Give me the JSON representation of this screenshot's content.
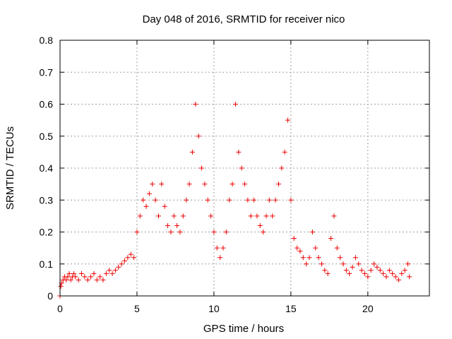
{
  "chart_data": {
    "type": "scatter",
    "title": "Day 048 of 2016, SRMTID for receiver nico",
    "xlabel": "GPS time / hours",
    "ylabel": "SRMTID / TECUs",
    "xlim": [
      0,
      24
    ],
    "ylim": [
      0,
      0.8
    ],
    "xticks": [
      0,
      5,
      10,
      15,
      20
    ],
    "yticks": [
      0,
      0.1,
      0.2,
      0.3,
      0.4,
      0.5,
      0.6,
      0.7,
      0.8
    ],
    "xtick_labels": [
      "0",
      "5",
      "10",
      "15",
      "20"
    ],
    "ytick_labels": [
      "0",
      "0.1",
      "0.2",
      "0.3",
      "0.4",
      "0.5",
      "0.6",
      "0.7",
      "0.8"
    ],
    "grid": true,
    "marker": "+",
    "color": "#ee0000",
    "series": [
      {
        "name": "SRMTID",
        "x": [
          0.0,
          0.05,
          0.1,
          0.2,
          0.3,
          0.4,
          0.5,
          0.6,
          0.7,
          0.8,
          0.9,
          1.0,
          1.2,
          1.4,
          1.6,
          1.8,
          2.0,
          2.2,
          2.4,
          2.6,
          2.8,
          3.0,
          3.2,
          3.4,
          3.6,
          3.8,
          4.0,
          4.2,
          4.4,
          4.6,
          4.8,
          5.0,
          5.2,
          5.4,
          5.6,
          5.8,
          6.0,
          6.2,
          6.4,
          6.6,
          6.8,
          7.0,
          7.2,
          7.4,
          7.6,
          7.8,
          8.0,
          8.2,
          8.4,
          8.6,
          8.8,
          9.0,
          9.2,
          9.4,
          9.6,
          9.8,
          10.0,
          10.2,
          10.4,
          10.6,
          10.8,
          11.0,
          11.2,
          11.4,
          11.6,
          11.8,
          12.0,
          12.2,
          12.4,
          12.6,
          12.8,
          13.0,
          13.2,
          13.4,
          13.6,
          13.8,
          14.0,
          14.2,
          14.4,
          14.6,
          14.8,
          15.0,
          15.2,
          15.4,
          15.6,
          15.8,
          16.0,
          16.2,
          16.4,
          16.6,
          16.8,
          17.0,
          17.2,
          17.4,
          17.6,
          17.8,
          18.0,
          18.2,
          18.4,
          18.6,
          18.8,
          19.0,
          19.2,
          19.4,
          19.6,
          19.8,
          20.0,
          20.2,
          20.4,
          20.6,
          20.8,
          21.0,
          21.2,
          21.4,
          21.6,
          21.8,
          22.0,
          22.2,
          22.4,
          22.6,
          22.7
        ],
        "y": [
          0.0,
          0.03,
          0.04,
          0.05,
          0.06,
          0.05,
          0.06,
          0.07,
          0.05,
          0.06,
          0.07,
          0.06,
          0.05,
          0.07,
          0.06,
          0.05,
          0.06,
          0.07,
          0.05,
          0.06,
          0.05,
          0.07,
          0.08,
          0.07,
          0.08,
          0.09,
          0.1,
          0.11,
          0.12,
          0.13,
          0.12,
          0.2,
          0.25,
          0.3,
          0.28,
          0.32,
          0.35,
          0.3,
          0.25,
          0.35,
          0.28,
          0.22,
          0.2,
          0.25,
          0.22,
          0.2,
          0.25,
          0.3,
          0.35,
          0.45,
          0.6,
          0.5,
          0.4,
          0.35,
          0.3,
          0.25,
          0.2,
          0.15,
          0.12,
          0.15,
          0.2,
          0.3,
          0.35,
          0.6,
          0.45,
          0.4,
          0.35,
          0.3,
          0.25,
          0.3,
          0.25,
          0.22,
          0.2,
          0.25,
          0.3,
          0.25,
          0.3,
          0.35,
          0.4,
          0.45,
          0.55,
          0.3,
          0.18,
          0.15,
          0.14,
          0.12,
          0.1,
          0.12,
          0.2,
          0.15,
          0.12,
          0.1,
          0.08,
          0.07,
          0.18,
          0.25,
          0.15,
          0.12,
          0.1,
          0.08,
          0.07,
          0.09,
          0.12,
          0.1,
          0.08,
          0.07,
          0.06,
          0.08,
          0.1,
          0.09,
          0.08,
          0.07,
          0.06,
          0.08,
          0.07,
          0.06,
          0.05,
          0.07,
          0.08,
          0.1,
          0.06
        ]
      }
    ]
  }
}
